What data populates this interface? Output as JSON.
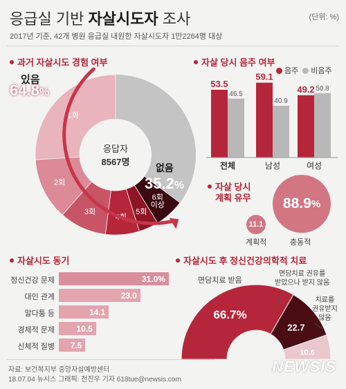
{
  "header": {
    "title_pre": "응급실 기반 ",
    "title_bold": "자살시도자",
    "title_post": " 조사",
    "unit": "(단위: %)",
    "subtitle": "2017년 기준, 42개 병원 응급실 내원한 자살시도자 1만2264명 대상"
  },
  "colors": {
    "accent": "#b5263a",
    "dark": "#4a0d14",
    "grey": "#b8b8b8",
    "pink": "#e3a4ae"
  },
  "sections": {
    "history": "과거 자살시도 경험 여부",
    "drinking": "자살 당시 음주 여부",
    "planning_l1": "자살 당시",
    "planning_l2": "계획 유무",
    "motive": "자살시도 동기",
    "treatment": "자살시도 후 정신건강의학적 치료"
  },
  "donut": {
    "yes_label": "있음",
    "yes_value": "64.8",
    "no_label": "없음",
    "no_value": "35.2",
    "pct": "%",
    "center_l1": "응답자",
    "center_l2": "8567명"
  },
  "drink_legend": {
    "drinker": "음주",
    "non": "비음주"
  },
  "plan": {
    "planned_label": "계획적",
    "planned_value": "11.1",
    "impulsive_label": "충동적",
    "impulsive_value": "88.9",
    "pct": "%"
  },
  "treat": {
    "recommended_label": "면담치료 받음",
    "refused_label_l1": "면담치료 권유를",
    "refused_label_l2": "받았으나 받지 않음",
    "none_label_l1": "치료를",
    "none_label_l2": "권유받지",
    "none_label_l3": "않음"
  },
  "footer": {
    "source": "자료: 보건복지부 중앙자살예방센터",
    "credit": "18.07.04 뉴시스 그래픽: 전진우 기자 618tue@newsis.com",
    "logo": "NEWSIS"
  },
  "chart_data": [
    {
      "type": "pie",
      "title": "과거 자살시도 경험 여부",
      "categories": [
        "1회",
        "2회",
        "3회",
        "4회",
        "5회",
        "6회 이상",
        "없음"
      ],
      "segment_labels": [
        "1회",
        "2회",
        "3회",
        "4회",
        "5회",
        "6회\n이상",
        ""
      ],
      "values": [
        26.0,
        12.5,
        9.5,
        6.8,
        4.0,
        6.0,
        35.2
      ],
      "groups": [
        {
          "name": "있음",
          "value": 64.8
        },
        {
          "name": "없음",
          "value": 35.2
        }
      ]
    },
    {
      "type": "bar",
      "title": "자살 당시 음주 여부",
      "categories": [
        "전체",
        "남성",
        "여성"
      ],
      "series": [
        {
          "name": "음주",
          "values": [
            53.5,
            59.1,
            49.2
          ]
        },
        {
          "name": "비음주",
          "values": [
            46.5,
            40.9,
            50.8
          ]
        }
      ],
      "ylim": [
        0,
        70
      ]
    },
    {
      "type": "bar",
      "title": "자살시도 동기",
      "orientation": "horizontal",
      "categories": [
        "정신건강 문제",
        "대인 관계",
        "말다툼 등",
        "경제적 문제",
        "신체적 질병"
      ],
      "values": [
        31.0,
        23.0,
        14.1,
        10.5,
        7.5
      ],
      "value_labels": [
        "31.0%",
        "23.0",
        "14.1",
        "10.5",
        "7.5"
      ]
    },
    {
      "type": "pie",
      "title": "자살시도 후 정신건강의학적 치료",
      "categories": [
        "면담치료 받음",
        "면담치료 권유를 받았으나 받지 않음",
        "치료를 권유받지 않음"
      ],
      "values": [
        66.7,
        22.7,
        10.6
      ],
      "value_labels": [
        "66.7%",
        "22.7",
        "10.6"
      ]
    }
  ]
}
